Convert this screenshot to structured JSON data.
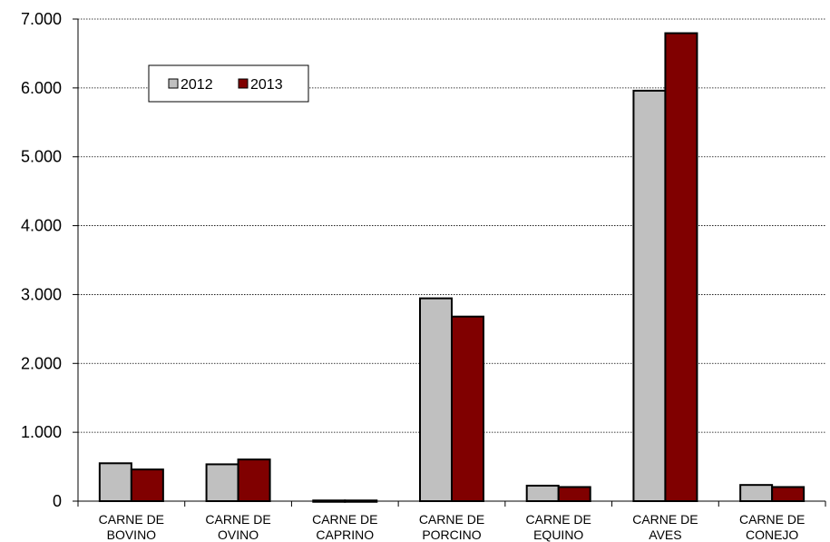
{
  "chart_data": {
    "type": "bar",
    "categories": [
      [
        "CARNE DE",
        "BOVINO"
      ],
      [
        "CARNE DE",
        "OVINO"
      ],
      [
        "CARNE DE",
        "CAPRINO"
      ],
      [
        "CARNE DE",
        "PORCINO"
      ],
      [
        "CARNE DE",
        "EQUINO"
      ],
      [
        "CARNE DE",
        "AVES"
      ],
      [
        "CARNE DE",
        "CONEJO"
      ]
    ],
    "series": [
      {
        "name": "2012",
        "color": "#c0c0c0",
        "values": [
          550,
          535,
          10,
          2945,
          225,
          5960,
          235
        ]
      },
      {
        "name": "2013",
        "color": "#800000",
        "values": [
          460,
          605,
          10,
          2680,
          205,
          6795,
          205
        ]
      }
    ],
    "ylim": [
      0,
      7000
    ],
    "yticks": [
      0,
      1000,
      2000,
      3000,
      4000,
      5000,
      6000,
      7000
    ],
    "ytick_labels": [
      "0",
      "1.000",
      "2.000",
      "3.000",
      "4.000",
      "5.000",
      "6.000",
      "7.000"
    ],
    "grid": true,
    "legend_position": "top-left",
    "title": "",
    "xlabel": "",
    "ylabel": ""
  }
}
